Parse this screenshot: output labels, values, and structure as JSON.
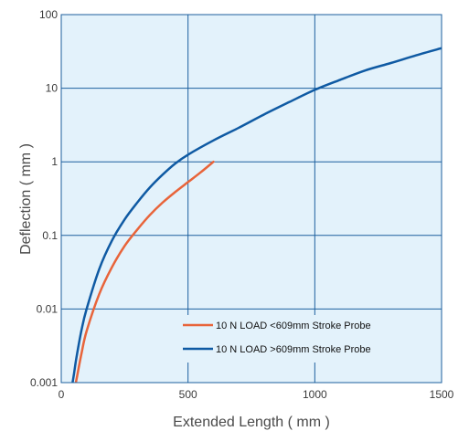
{
  "chart_data": {
    "type": "line",
    "xlabel": "Extended Length ( mm )",
    "ylabel": "Deflection ( mm )",
    "xlim": [
      0,
      1500
    ],
    "ylim": [
      0.001,
      100
    ],
    "y_scale": "log",
    "grid": true,
    "legend_position": "bottom-right",
    "x_ticks": [
      {
        "value": 0,
        "label": "0"
      },
      {
        "value": 500,
        "label": "500"
      },
      {
        "value": 1000,
        "label": "1000"
      },
      {
        "value": 1500,
        "label": "1500"
      }
    ],
    "y_ticks": [
      {
        "value": 0.001,
        "label": "0.001"
      },
      {
        "value": 0.01,
        "label": "0.01"
      },
      {
        "value": 0.1,
        "label": "0.1"
      },
      {
        "value": 1,
        "label": "1"
      },
      {
        "value": 10,
        "label": "10"
      },
      {
        "value": 100,
        "label": "100"
      }
    ],
    "colors": {
      "plot_background": "#e3f2fb",
      "grid": "#1c5f9e",
      "frame": "#1c5f9e"
    },
    "series": [
      {
        "name": "10 N LOAD <609mm Stroke Probe",
        "color": "#e8643a",
        "x": [
          52,
          60,
          80,
          100,
          150,
          200,
          250,
          300,
          350,
          400,
          450,
          500,
          550,
          600
        ],
        "y": [
          0.0008,
          0.0011,
          0.0025,
          0.005,
          0.016,
          0.037,
          0.072,
          0.12,
          0.19,
          0.28,
          0.39,
          0.53,
          0.72,
          1.0
        ]
      },
      {
        "name": "10 N LOAD >609mm Stroke Probe",
        "color": "#0f5aa3",
        "x": [
          40,
          50,
          60,
          80,
          100,
          150,
          200,
          250,
          300,
          350,
          400,
          450,
          500,
          600,
          700,
          800,
          900,
          1000,
          1100,
          1200,
          1300,
          1400,
          1500
        ],
        "y": [
          0.0008,
          0.0013,
          0.0022,
          0.0052,
          0.01,
          0.035,
          0.085,
          0.165,
          0.28,
          0.45,
          0.67,
          0.95,
          1.25,
          1.95,
          2.9,
          4.4,
          6.5,
          9.5,
          13,
          17.5,
          22,
          28,
          35
        ]
      }
    ]
  }
}
